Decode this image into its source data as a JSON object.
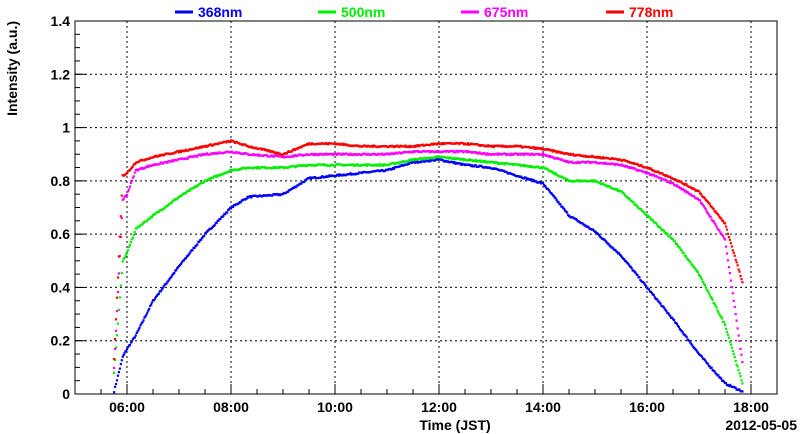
{
  "chart_data": {
    "type": "scatter",
    "xlabel": "Time (JST)",
    "ylabel": "Intensity (a.u.)",
    "date_label": "2012-05-05",
    "xlim": [
      "05:00",
      "18:30"
    ],
    "ylim": [
      0,
      1.4
    ],
    "grid": true,
    "legend_position": "top",
    "x_tick_labels": [
      "06:00",
      "08:00",
      "10:00",
      "12:00",
      "14:00",
      "16:00",
      "18:00"
    ],
    "y_tick_labels": [
      "0",
      "0.2",
      "0.4",
      "0.6",
      "0.8",
      "1",
      "1.2",
      "1.4"
    ],
    "y_ticks": [
      0,
      0.2,
      0.4,
      0.6,
      0.8,
      1.0,
      1.2,
      1.4
    ],
    "series": [
      {
        "name": "368nm",
        "color": "#0000ff",
        "x": [
          "05:45",
          "05:55",
          "06:00",
          "06:10",
          "06:30",
          "07:00",
          "07:30",
          "08:00",
          "08:20",
          "09:00",
          "09:30",
          "10:00",
          "10:30",
          "11:00",
          "11:30",
          "12:00",
          "12:30",
          "13:00",
          "13:30",
          "14:00",
          "14:30",
          "15:00",
          "15:30",
          "16:00",
          "16:30",
          "17:00",
          "17:30",
          "17:50"
        ],
        "values": [
          0.01,
          0.14,
          0.17,
          0.22,
          0.35,
          0.48,
          0.6,
          0.7,
          0.74,
          0.75,
          0.81,
          0.82,
          0.83,
          0.84,
          0.87,
          0.88,
          0.86,
          0.85,
          0.82,
          0.79,
          0.67,
          0.61,
          0.52,
          0.4,
          0.28,
          0.15,
          0.04,
          0.01
        ]
      },
      {
        "name": "500nm",
        "color": "#00ee00",
        "x": [
          "05:45",
          "05:55",
          "06:00",
          "06:10",
          "06:30",
          "07:00",
          "07:30",
          "08:00",
          "08:20",
          "09:00",
          "09:30",
          "10:00",
          "10:30",
          "11:00",
          "11:30",
          "12:00",
          "12:30",
          "13:00",
          "13:30",
          "14:00",
          "14:30",
          "15:00",
          "15:30",
          "16:00",
          "16:30",
          "17:00",
          "17:30",
          "17:50"
        ],
        "values": [
          0.08,
          0.5,
          0.53,
          0.62,
          0.67,
          0.74,
          0.8,
          0.84,
          0.85,
          0.85,
          0.86,
          0.86,
          0.86,
          0.86,
          0.88,
          0.89,
          0.88,
          0.87,
          0.86,
          0.85,
          0.8,
          0.8,
          0.76,
          0.67,
          0.58,
          0.45,
          0.26,
          0.04
        ]
      },
      {
        "name": "675nm",
        "color": "#ff00ff",
        "x": [
          "05:45",
          "05:55",
          "06:00",
          "06:10",
          "06:30",
          "07:00",
          "07:30",
          "08:00",
          "08:20",
          "09:00",
          "09:30",
          "10:00",
          "10:30",
          "11:00",
          "11:30",
          "12:00",
          "12:30",
          "13:00",
          "13:30",
          "14:00",
          "14:30",
          "15:00",
          "15:30",
          "16:00",
          "16:30",
          "17:00",
          "17:30",
          "17:50"
        ],
        "values": [
          0.1,
          0.73,
          0.75,
          0.84,
          0.86,
          0.88,
          0.9,
          0.91,
          0.9,
          0.89,
          0.9,
          0.9,
          0.9,
          0.9,
          0.91,
          0.91,
          0.91,
          0.9,
          0.9,
          0.9,
          0.87,
          0.87,
          0.86,
          0.83,
          0.79,
          0.73,
          0.58,
          0.12
        ]
      },
      {
        "name": "778nm",
        "color": "#ff0000",
        "x": [
          "05:45",
          "05:55",
          "06:00",
          "06:10",
          "06:30",
          "07:00",
          "07:30",
          "08:00",
          "08:20",
          "09:00",
          "09:30",
          "10:00",
          "10:30",
          "11:00",
          "11:30",
          "12:00",
          "12:30",
          "13:00",
          "13:30",
          "14:00",
          "14:30",
          "15:00",
          "15:30",
          "16:00",
          "16:30",
          "17:00",
          "17:30",
          "17:50"
        ],
        "values": [
          0.13,
          0.82,
          0.83,
          0.87,
          0.89,
          0.91,
          0.93,
          0.95,
          0.93,
          0.9,
          0.94,
          0.94,
          0.93,
          0.93,
          0.93,
          0.94,
          0.94,
          0.93,
          0.93,
          0.92,
          0.9,
          0.89,
          0.88,
          0.85,
          0.81,
          0.76,
          0.64,
          0.42
        ]
      }
    ]
  }
}
